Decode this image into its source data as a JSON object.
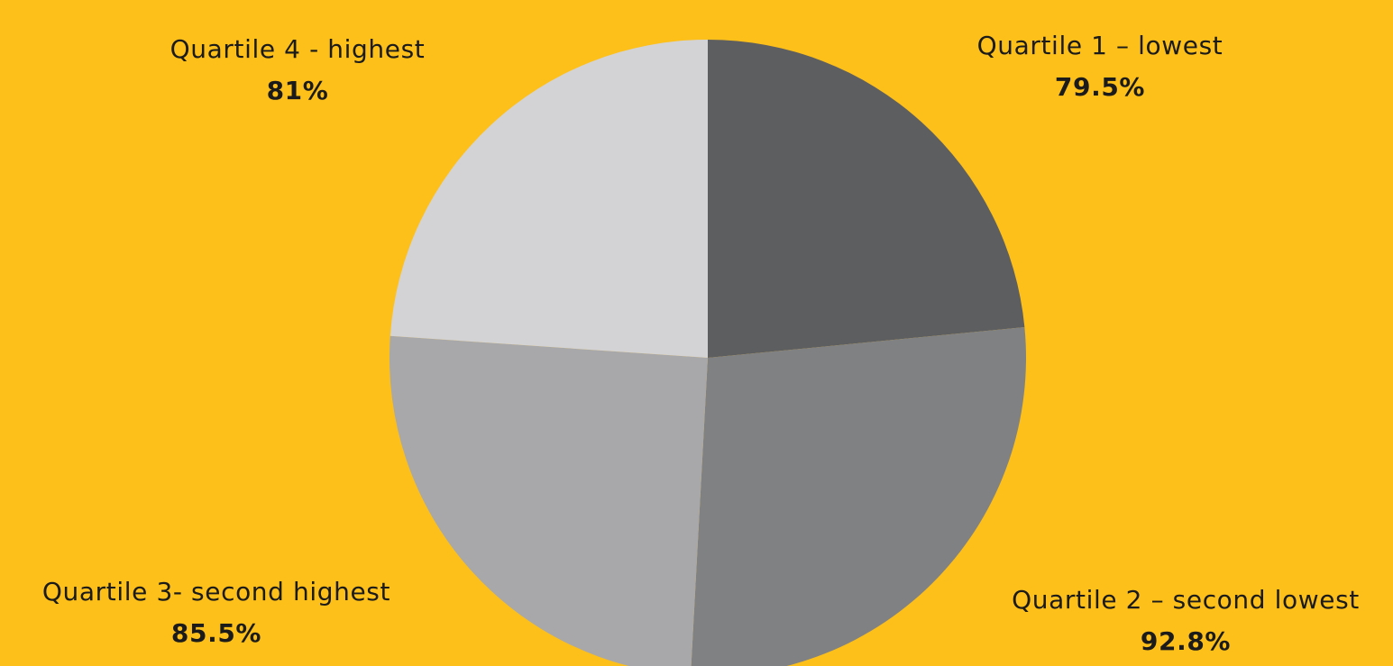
{
  "colors": {
    "background": "#FDBF1A",
    "text": "#1B1B1B"
  },
  "chart_data": {
    "type": "pie",
    "title": "",
    "start_angle_deg": 0,
    "direction": "clockwise",
    "slices": [
      {
        "id": "q1",
        "label": "Quartile 1 – lowest",
        "value_label": "79.5%",
        "value": 79.5,
        "color": "#5D5E60"
      },
      {
        "id": "q2",
        "label": "Quartile 2 – second lowest",
        "value_label": "92.8%",
        "value": 92.8,
        "color": "#808183"
      },
      {
        "id": "q3",
        "label": "Quartile 3- second highest",
        "value_label": "85.5%",
        "value": 85.5,
        "color": "#A8A8AA"
      },
      {
        "id": "q4",
        "label": "Quartile 4 - highest",
        "value_label": "81%",
        "value": 81,
        "color": "#D3D3D5"
      }
    ]
  }
}
